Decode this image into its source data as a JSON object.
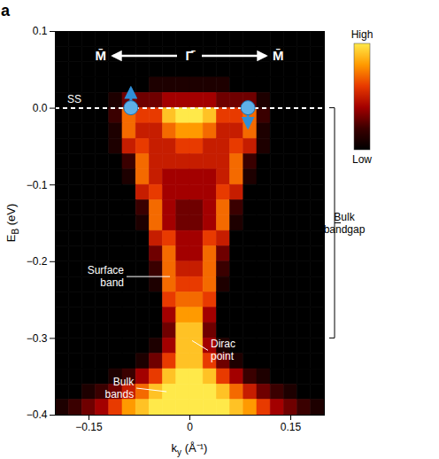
{
  "chart_data": {
    "type": "heatmap",
    "panel_label": "a",
    "xlabel": {
      "symbol": "k",
      "subscript": "y",
      "unit": "(Å⁻¹)"
    },
    "ylabel": {
      "symbol": "E",
      "subscript": "B",
      "unit": "(eV)"
    },
    "xlim": [
      -0.2,
      0.2
    ],
    "xticks": [
      -0.15,
      0,
      0.15
    ],
    "ylim": [
      -0.4,
      0.1
    ],
    "yticks": [
      0.1,
      {
        "value": 0,
        "label": "0.0"
      },
      -0.1,
      -0.2,
      -0.3,
      -0.4
    ],
    "k": [
      -0.19,
      -0.17,
      -0.15,
      -0.13,
      -0.11,
      -0.09,
      -0.07,
      -0.05,
      -0.03,
      -0.01,
      0.01,
      0.03,
      0.05,
      0.07,
      0.09,
      0.11,
      0.13,
      0.15,
      0.17,
      0.19
    ],
    "E": [
      0.09,
      0.07,
      0.05,
      0.03,
      0.01,
      -0.01,
      -0.03,
      -0.05,
      -0.07,
      -0.09,
      -0.11,
      -0.13,
      -0.15,
      -0.17,
      -0.19,
      -0.21,
      -0.23,
      -0.25,
      -0.27,
      -0.29,
      -0.31,
      -0.33,
      -0.35,
      -0.37,
      -0.39
    ],
    "intensity": [
      [
        0,
        0,
        0,
        0,
        0,
        0,
        0,
        0,
        0,
        0,
        0,
        0,
        0,
        0,
        0,
        0,
        0,
        0,
        0,
        0
      ],
      [
        0,
        0,
        0,
        0,
        0,
        0,
        0,
        0,
        0,
        0,
        0,
        0,
        0,
        0,
        0,
        0,
        0,
        0,
        0,
        0
      ],
      [
        0,
        0,
        0,
        0,
        0,
        0,
        0,
        0,
        0,
        0,
        0,
        0,
        0,
        0,
        0,
        0,
        0,
        0,
        0,
        0
      ],
      [
        0,
        0,
        0,
        0,
        0,
        0,
        0,
        1,
        1,
        1,
        1,
        1,
        1,
        0,
        0,
        0,
        0,
        0,
        0,
        0
      ],
      [
        0,
        0,
        0,
        0,
        1,
        3,
        3,
        3,
        4,
        4,
        4,
        4,
        3,
        3,
        3,
        1,
        0,
        0,
        0,
        0
      ],
      [
        0,
        0,
        0,
        0,
        2,
        7,
        6,
        6,
        9,
        10,
        10,
        9,
        6,
        6,
        7,
        2,
        0,
        0,
        0,
        0
      ],
      [
        0,
        0,
        0,
        0,
        1,
        7,
        5,
        5,
        7,
        8,
        8,
        7,
        5,
        5,
        7,
        1,
        0,
        0,
        0,
        0
      ],
      [
        0,
        0,
        0,
        0,
        1,
        5,
        6,
        5,
        5,
        6,
        6,
        5,
        5,
        6,
        5,
        1,
        0,
        0,
        0,
        0
      ],
      [
        0,
        0,
        0,
        0,
        0,
        2,
        7,
        5,
        5,
        5,
        5,
        5,
        5,
        7,
        2,
        0,
        0,
        0,
        0,
        0
      ],
      [
        0,
        0,
        0,
        0,
        0,
        1,
        7,
        5,
        4,
        4,
        4,
        4,
        5,
        7,
        1,
        0,
        0,
        0,
        0,
        0
      ],
      [
        0,
        0,
        0,
        0,
        0,
        0,
        5,
        6,
        4,
        4,
        4,
        4,
        6,
        5,
        0,
        0,
        0,
        0,
        0,
        0
      ],
      [
        0,
        0,
        0,
        0,
        0,
        0,
        2,
        7,
        4,
        3,
        3,
        4,
        7,
        2,
        0,
        0,
        0,
        0,
        0,
        0
      ],
      [
        0,
        0,
        0,
        0,
        0,
        0,
        1,
        7,
        4,
        3,
        3,
        4,
        7,
        1,
        0,
        0,
        0,
        0,
        0,
        0
      ],
      [
        0,
        0,
        0,
        0,
        0,
        0,
        0,
        5,
        6,
        4,
        4,
        6,
        5,
        0,
        0,
        0,
        0,
        0,
        0,
        0
      ],
      [
        0,
        0,
        0,
        0,
        0,
        0,
        0,
        3,
        7,
        4,
        4,
        7,
        3,
        0,
        0,
        0,
        0,
        0,
        0,
        0
      ],
      [
        0,
        0,
        0,
        0,
        0,
        0,
        0,
        2,
        7,
        5,
        5,
        7,
        2,
        0,
        0,
        0,
        0,
        0,
        0,
        0
      ],
      [
        0,
        0,
        0,
        0,
        0,
        0,
        0,
        1,
        7,
        6,
        6,
        7,
        1,
        0,
        0,
        0,
        0,
        0,
        0,
        0
      ],
      [
        0,
        0,
        0,
        0,
        0,
        0,
        0,
        0,
        6,
        7,
        7,
        6,
        0,
        0,
        0,
        0,
        0,
        0,
        0,
        0
      ],
      [
        0,
        0,
        0,
        0,
        0,
        0,
        0,
        0,
        4,
        8,
        8,
        4,
        0,
        0,
        0,
        0,
        0,
        0,
        0,
        0
      ],
      [
        0,
        0,
        0,
        0,
        0,
        0,
        0,
        0,
        3,
        9,
        9,
        3,
        0,
        0,
        0,
        0,
        0,
        0,
        0,
        0
      ],
      [
        0,
        0,
        0,
        0,
        0,
        0,
        0,
        1,
        4,
        9,
        9,
        4,
        1,
        0,
        0,
        0,
        0,
        0,
        0,
        0
      ],
      [
        0,
        0,
        0,
        0,
        0,
        0,
        1,
        3,
        6,
        9,
        9,
        6,
        3,
        1,
        0,
        0,
        0,
        0,
        0,
        0
      ],
      [
        0,
        0,
        0,
        0,
        1,
        2,
        4,
        6,
        9,
        10,
        10,
        9,
        6,
        4,
        2,
        1,
        0,
        0,
        0,
        0
      ],
      [
        0,
        0,
        1,
        2,
        3,
        5,
        7,
        9,
        10,
        10,
        10,
        10,
        9,
        7,
        5,
        3,
        2,
        1,
        0,
        0
      ],
      [
        1,
        2,
        3,
        4,
        6,
        8,
        9,
        10,
        10,
        10,
        10,
        10,
        10,
        9,
        8,
        6,
        4,
        3,
        2,
        1
      ]
    ],
    "colorbar": {
      "range": [
        0,
        10
      ],
      "high_label": "High",
      "low_label": "Low"
    },
    "direction_labels": [
      "M̄",
      "Γ̄",
      "M̄"
    ],
    "surface_state": {
      "label": "SS",
      "E": 0,
      "line_style": "dashed"
    },
    "spins": [
      {
        "k": -0.087,
        "E": 0,
        "marker": "up"
      },
      {
        "k": 0.087,
        "E": 0,
        "marker": "down"
      }
    ],
    "annotations": [
      {
        "text": "Surface band",
        "k": -0.025,
        "E": -0.22
      },
      {
        "text": "Dirac point",
        "k": 0,
        "E": -0.3
      },
      {
        "text": "Bulk bands",
        "k": -0.03,
        "E": -0.37
      }
    ],
    "bulk_bandgap": {
      "label": "Bulk bandgap",
      "E": [
        0,
        -0.3
      ]
    }
  }
}
